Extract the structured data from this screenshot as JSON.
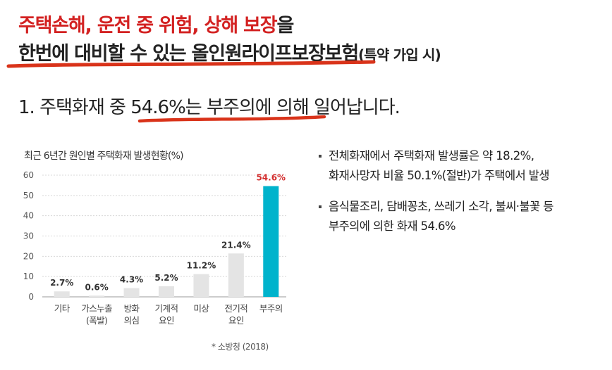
{
  "headline": {
    "line1_red": "주택손해, 운전 중 위험, 상해 보장",
    "line1_dark": "을",
    "line2_main": "한번에 대비할 수 있는 올인원라이프보장보험",
    "line2_small": "(특약 가입 시)"
  },
  "section": {
    "title": "1. 주택화재 중 54.6%는 부주의에 의해 일어납니다."
  },
  "chart_data": {
    "type": "bar",
    "title": "최근 6년간 원인별 주택화재 발생현황(%)",
    "categories": [
      [
        "기타"
      ],
      [
        "가스누출",
        "(폭발)"
      ],
      [
        "방화",
        "의심"
      ],
      [
        "기계적",
        "요인"
      ],
      [
        "미상"
      ],
      [
        "전기적",
        "요인"
      ],
      [
        "부주의"
      ]
    ],
    "values": [
      2.7,
      0.6,
      4.3,
      5.2,
      11.2,
      21.4,
      54.6
    ],
    "data_labels": [
      "2.7%",
      "0.6%",
      "4.3%",
      "5.2%",
      "11.2%",
      "21.4%",
      "54.6%"
    ],
    "yticks": [
      0,
      10,
      20,
      30,
      40,
      50,
      60
    ],
    "ylim": [
      0,
      60
    ],
    "grid": true,
    "colors": {
      "default_bar": "#e4e4e4",
      "highlight_bar": "#00b3cc",
      "highlight_label": "#d32f2f",
      "default_label": "#333333"
    },
    "highlight_index": 6
  },
  "source": "* 소방청 (2018)",
  "bullets": [
    [
      "전체화재에서 주택화재 발생률은 약 18.2%,",
      "화재사망자 비율 50.1%(절반)가 주택에서 발생"
    ],
    [
      "음식물조리, 담배꽁초, 쓰레기 소각, 불씨·불꽃 등",
      "부주의에 의한 화재 54.6%"
    ]
  ],
  "colors": {
    "accent_red": "#d32222",
    "underline": "#d9331a"
  }
}
